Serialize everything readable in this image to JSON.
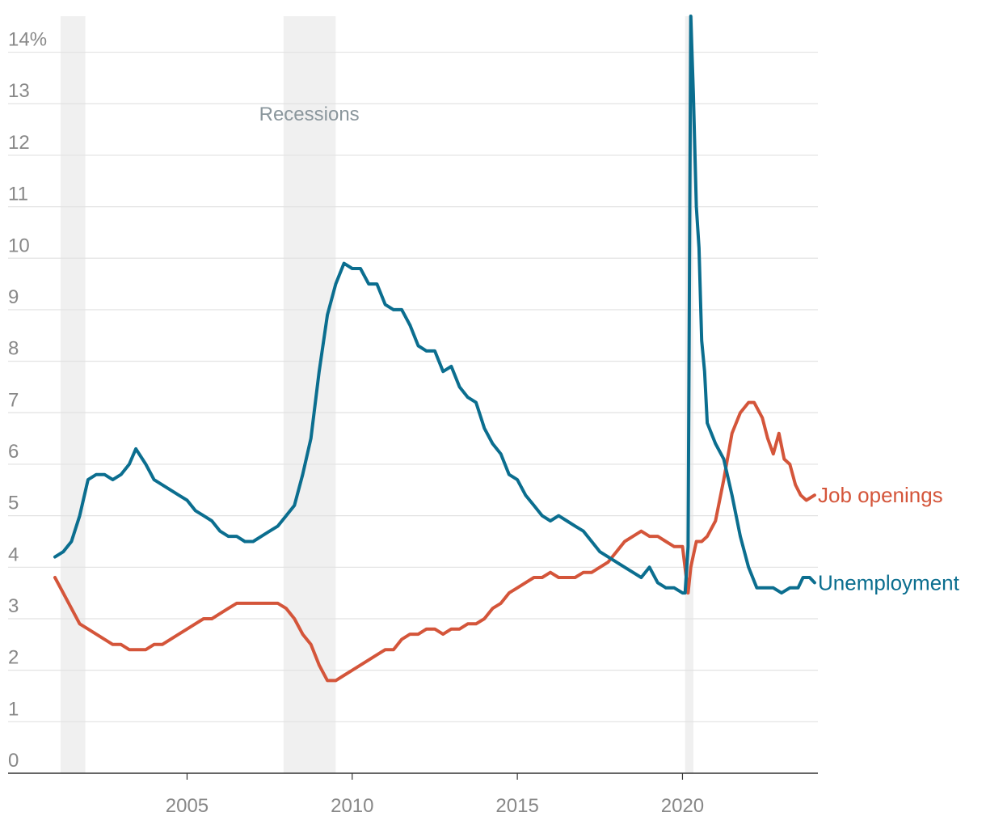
{
  "chart_data": {
    "type": "line",
    "title": "",
    "xlabel": "",
    "ylabel": "",
    "y_unit": "%",
    "xlim": [
      2001.0,
      2024.1
    ],
    "ylim": [
      0,
      14.7
    ],
    "grid": true,
    "ytick_values": [
      0,
      1,
      2,
      3,
      4,
      5,
      6,
      7,
      8,
      9,
      10,
      11,
      12,
      13,
      14
    ],
    "ytick_labels": [
      "0",
      "1",
      "2",
      "3",
      "4",
      "5",
      "6",
      "7",
      "8",
      "9",
      "10",
      "11",
      "12",
      "13",
      "14%"
    ],
    "xtick_values": [
      2005,
      2010,
      2015,
      2020
    ],
    "xtick_labels": [
      "2005",
      "2010",
      "2015",
      "2020"
    ],
    "recessions": {
      "label": "Recessions",
      "periods": [
        [
          2001.17,
          2001.92
        ],
        [
          2007.92,
          2009.5
        ],
        [
          2020.08,
          2020.33
        ]
      ]
    },
    "series": [
      {
        "name": "Unemployment",
        "color": "#0b6e8f",
        "points": [
          [
            2001.0,
            4.2
          ],
          [
            2001.25,
            4.3
          ],
          [
            2001.5,
            4.5
          ],
          [
            2001.75,
            5.0
          ],
          [
            2002.0,
            5.7
          ],
          [
            2002.25,
            5.8
          ],
          [
            2002.5,
            5.8
          ],
          [
            2002.75,
            5.7
          ],
          [
            2003.0,
            5.8
          ],
          [
            2003.25,
            6.0
          ],
          [
            2003.45,
            6.3
          ],
          [
            2003.75,
            6.0
          ],
          [
            2004.0,
            5.7
          ],
          [
            2004.25,
            5.6
          ],
          [
            2004.5,
            5.5
          ],
          [
            2004.75,
            5.4
          ],
          [
            2005.0,
            5.3
          ],
          [
            2005.25,
            5.1
          ],
          [
            2005.5,
            5.0
          ],
          [
            2005.75,
            4.9
          ],
          [
            2006.0,
            4.7
          ],
          [
            2006.25,
            4.6
          ],
          [
            2006.5,
            4.6
          ],
          [
            2006.75,
            4.5
          ],
          [
            2007.0,
            4.5
          ],
          [
            2007.25,
            4.6
          ],
          [
            2007.5,
            4.7
          ],
          [
            2007.75,
            4.8
          ],
          [
            2008.0,
            5.0
          ],
          [
            2008.25,
            5.2
          ],
          [
            2008.5,
            5.8
          ],
          [
            2008.75,
            6.5
          ],
          [
            2009.0,
            7.8
          ],
          [
            2009.25,
            8.9
          ],
          [
            2009.5,
            9.5
          ],
          [
            2009.75,
            9.9
          ],
          [
            2010.0,
            9.8
          ],
          [
            2010.25,
            9.8
          ],
          [
            2010.5,
            9.5
          ],
          [
            2010.75,
            9.5
          ],
          [
            2011.0,
            9.1
          ],
          [
            2011.25,
            9.0
          ],
          [
            2011.5,
            9.0
          ],
          [
            2011.75,
            8.7
          ],
          [
            2012.0,
            8.3
          ],
          [
            2012.25,
            8.2
          ],
          [
            2012.5,
            8.2
          ],
          [
            2012.75,
            7.8
          ],
          [
            2013.0,
            7.9
          ],
          [
            2013.25,
            7.5
          ],
          [
            2013.5,
            7.3
          ],
          [
            2013.75,
            7.2
          ],
          [
            2014.0,
            6.7
          ],
          [
            2014.25,
            6.4
          ],
          [
            2014.5,
            6.2
          ],
          [
            2014.75,
            5.8
          ],
          [
            2015.0,
            5.7
          ],
          [
            2015.25,
            5.4
          ],
          [
            2015.5,
            5.2
          ],
          [
            2015.75,
            5.0
          ],
          [
            2016.0,
            4.9
          ],
          [
            2016.25,
            5.0
          ],
          [
            2016.5,
            4.9
          ],
          [
            2016.75,
            4.8
          ],
          [
            2017.0,
            4.7
          ],
          [
            2017.25,
            4.5
          ],
          [
            2017.5,
            4.3
          ],
          [
            2017.75,
            4.2
          ],
          [
            2018.0,
            4.1
          ],
          [
            2018.25,
            4.0
          ],
          [
            2018.5,
            3.9
          ],
          [
            2018.75,
            3.8
          ],
          [
            2019.0,
            4.0
          ],
          [
            2019.25,
            3.7
          ],
          [
            2019.5,
            3.6
          ],
          [
            2019.75,
            3.6
          ],
          [
            2020.0,
            3.5
          ],
          [
            2020.08,
            3.5
          ],
          [
            2020.17,
            4.4
          ],
          [
            2020.25,
            14.7
          ],
          [
            2020.33,
            13.2
          ],
          [
            2020.42,
            11.0
          ],
          [
            2020.5,
            10.2
          ],
          [
            2020.58,
            8.4
          ],
          [
            2020.67,
            7.8
          ],
          [
            2020.75,
            6.8
          ],
          [
            2021.0,
            6.4
          ],
          [
            2021.25,
            6.1
          ],
          [
            2021.5,
            5.4
          ],
          [
            2021.75,
            4.6
          ],
          [
            2022.0,
            4.0
          ],
          [
            2022.25,
            3.6
          ],
          [
            2022.5,
            3.6
          ],
          [
            2022.75,
            3.6
          ],
          [
            2023.0,
            3.5
          ],
          [
            2023.25,
            3.6
          ],
          [
            2023.5,
            3.6
          ],
          [
            2023.65,
            3.8
          ],
          [
            2023.85,
            3.8
          ],
          [
            2024.0,
            3.7
          ]
        ]
      },
      {
        "name": "Job openings",
        "color": "#d4553a",
        "points": [
          [
            2001.0,
            3.8
          ],
          [
            2001.25,
            3.5
          ],
          [
            2001.5,
            3.2
          ],
          [
            2001.75,
            2.9
          ],
          [
            2002.0,
            2.8
          ],
          [
            2002.25,
            2.7
          ],
          [
            2002.5,
            2.6
          ],
          [
            2002.75,
            2.5
          ],
          [
            2003.0,
            2.5
          ],
          [
            2003.25,
            2.4
          ],
          [
            2003.5,
            2.4
          ],
          [
            2003.75,
            2.4
          ],
          [
            2004.0,
            2.5
          ],
          [
            2004.25,
            2.5
          ],
          [
            2004.5,
            2.6
          ],
          [
            2004.75,
            2.7
          ],
          [
            2005.0,
            2.8
          ],
          [
            2005.25,
            2.9
          ],
          [
            2005.5,
            3.0
          ],
          [
            2005.75,
            3.0
          ],
          [
            2006.0,
            3.1
          ],
          [
            2006.25,
            3.2
          ],
          [
            2006.5,
            3.3
          ],
          [
            2006.75,
            3.3
          ],
          [
            2007.0,
            3.3
          ],
          [
            2007.25,
            3.3
          ],
          [
            2007.5,
            3.3
          ],
          [
            2007.75,
            3.3
          ],
          [
            2008.0,
            3.2
          ],
          [
            2008.25,
            3.0
          ],
          [
            2008.5,
            2.7
          ],
          [
            2008.75,
            2.5
          ],
          [
            2009.0,
            2.1
          ],
          [
            2009.25,
            1.8
          ],
          [
            2009.5,
            1.8
          ],
          [
            2009.75,
            1.9
          ],
          [
            2010.0,
            2.0
          ],
          [
            2010.25,
            2.1
          ],
          [
            2010.5,
            2.2
          ],
          [
            2010.75,
            2.3
          ],
          [
            2011.0,
            2.4
          ],
          [
            2011.25,
            2.4
          ],
          [
            2011.5,
            2.6
          ],
          [
            2011.75,
            2.7
          ],
          [
            2012.0,
            2.7
          ],
          [
            2012.25,
            2.8
          ],
          [
            2012.5,
            2.8
          ],
          [
            2012.75,
            2.7
          ],
          [
            2013.0,
            2.8
          ],
          [
            2013.25,
            2.8
          ],
          [
            2013.5,
            2.9
          ],
          [
            2013.75,
            2.9
          ],
          [
            2014.0,
            3.0
          ],
          [
            2014.25,
            3.2
          ],
          [
            2014.5,
            3.3
          ],
          [
            2014.75,
            3.5
          ],
          [
            2015.0,
            3.6
          ],
          [
            2015.25,
            3.7
          ],
          [
            2015.5,
            3.8
          ],
          [
            2015.75,
            3.8
          ],
          [
            2016.0,
            3.9
          ],
          [
            2016.25,
            3.8
          ],
          [
            2016.5,
            3.8
          ],
          [
            2016.75,
            3.8
          ],
          [
            2017.0,
            3.9
          ],
          [
            2017.25,
            3.9
          ],
          [
            2017.5,
            4.0
          ],
          [
            2017.75,
            4.1
          ],
          [
            2018.0,
            4.3
          ],
          [
            2018.25,
            4.5
          ],
          [
            2018.5,
            4.6
          ],
          [
            2018.75,
            4.7
          ],
          [
            2019.0,
            4.6
          ],
          [
            2019.25,
            4.6
          ],
          [
            2019.5,
            4.5
          ],
          [
            2019.75,
            4.4
          ],
          [
            2020.0,
            4.4
          ],
          [
            2020.17,
            3.5
          ],
          [
            2020.25,
            4.0
          ],
          [
            2020.42,
            4.5
          ],
          [
            2020.58,
            4.5
          ],
          [
            2020.75,
            4.6
          ],
          [
            2021.0,
            4.9
          ],
          [
            2021.25,
            5.7
          ],
          [
            2021.5,
            6.6
          ],
          [
            2021.75,
            7.0
          ],
          [
            2022.0,
            7.2
          ],
          [
            2022.17,
            7.2
          ],
          [
            2022.42,
            6.9
          ],
          [
            2022.58,
            6.5
          ],
          [
            2022.75,
            6.2
          ],
          [
            2022.92,
            6.6
          ],
          [
            2023.08,
            6.1
          ],
          [
            2023.25,
            6.0
          ],
          [
            2023.42,
            5.6
          ],
          [
            2023.58,
            5.4
          ],
          [
            2023.75,
            5.3
          ],
          [
            2024.0,
            5.4
          ]
        ]
      }
    ]
  }
}
